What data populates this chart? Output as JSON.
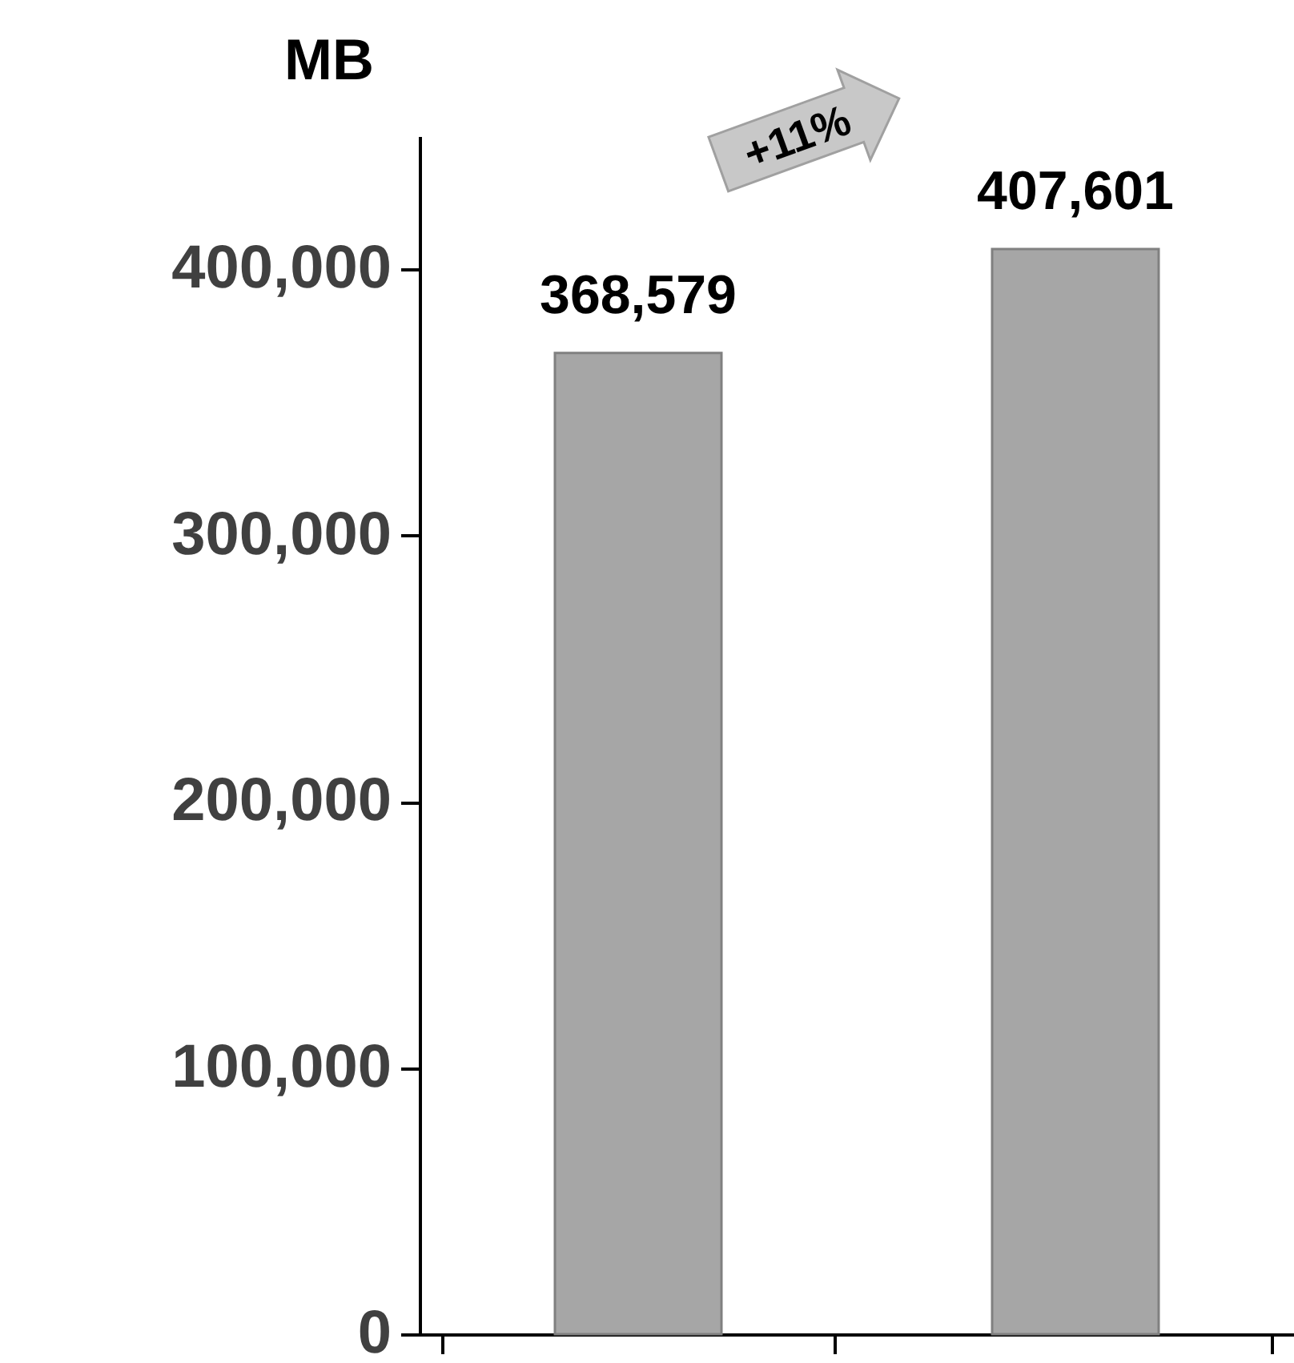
{
  "chart_data": {
    "type": "bar",
    "ylabel": "MB",
    "categories": [
      null,
      null
    ],
    "values": [
      368579,
      407601
    ],
    "value_labels": [
      "368,579",
      "407,601"
    ],
    "color": "#a6a6a6",
    "ylim": [
      0,
      450000
    ],
    "yticks": [
      0,
      {
        "value": 100000,
        "label": "100,000"
      },
      {
        "value": 200000,
        "label": "200,000"
      },
      {
        "value": 300000,
        "label": "300,000"
      },
      {
        "value": 400000,
        "label": "400,000"
      }
    ],
    "grid": false,
    "annotations": [
      "+11%"
    ]
  }
}
